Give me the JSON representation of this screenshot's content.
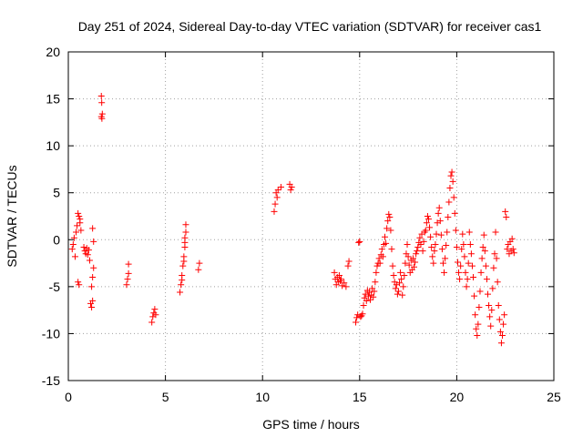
{
  "chart_data": {
    "type": "scatter",
    "title": "Day 251 of 2024, Sidereal Day-to-day VTEC variation (SDTVAR) for receiver cas1",
    "xlabel": "GPS time / hours",
    "ylabel": "SDTVAR / TECUs",
    "xlim": [
      0,
      25
    ],
    "ylim": [
      -15,
      20
    ],
    "xticks": [
      "0",
      "5",
      "10",
      "15",
      "20",
      "25"
    ],
    "yticks": [
      "-15",
      "-10",
      "-5",
      "0",
      "5",
      "10",
      "15",
      "20"
    ],
    "grid": true,
    "marker": "plus",
    "color": "#ff0000",
    "series": [
      {
        "name": "SDTVAR",
        "points": [
          [
            0.2,
            -1.0
          ],
          [
            0.25,
            -0.5
          ],
          [
            0.3,
            0.2
          ],
          [
            0.35,
            -1.8
          ],
          [
            0.4,
            0.8
          ],
          [
            0.45,
            1.5
          ],
          [
            0.5,
            2.8
          ],
          [
            0.55,
            2.5
          ],
          [
            0.6,
            2.2
          ],
          [
            0.65,
            1.0
          ],
          [
            0.5,
            -4.5
          ],
          [
            0.55,
            -4.8
          ],
          [
            0.6,
            1.8
          ],
          [
            0.8,
            -0.8
          ],
          [
            0.85,
            -1.2
          ],
          [
            0.9,
            -1.5
          ],
          [
            0.95,
            -0.9
          ],
          [
            1.0,
            -1.6
          ],
          [
            1.05,
            -1.1
          ],
          [
            1.1,
            -2.2
          ],
          [
            1.15,
            -6.8
          ],
          [
            1.2,
            -7.2
          ],
          [
            1.25,
            -6.5
          ],
          [
            1.2,
            -5.0
          ],
          [
            1.25,
            -4.0
          ],
          [
            1.25,
            1.2
          ],
          [
            1.3,
            -0.2
          ],
          [
            1.3,
            -3.0
          ],
          [
            1.7,
            15.3
          ],
          [
            1.72,
            14.6
          ],
          [
            1.75,
            13.4
          ],
          [
            1.73,
            12.9
          ],
          [
            1.7,
            13.1
          ],
          [
            3.0,
            -4.8
          ],
          [
            3.05,
            -4.2
          ],
          [
            3.1,
            -3.6
          ],
          [
            3.1,
            -2.6
          ],
          [
            4.3,
            -8.8
          ],
          [
            4.35,
            -8.2
          ],
          [
            4.4,
            -7.8
          ],
          [
            4.5,
            -8.0
          ],
          [
            4.45,
            -7.4
          ],
          [
            5.75,
            -5.6
          ],
          [
            5.8,
            -4.8
          ],
          [
            5.85,
            -3.8
          ],
          [
            5.9,
            -2.8
          ],
          [
            5.95,
            -1.8
          ],
          [
            6.0,
            -0.8
          ],
          [
            6.0,
            0.2
          ],
          [
            6.05,
            0.8
          ],
          [
            6.05,
            1.6
          ],
          [
            5.85,
            -4.3
          ],
          [
            5.95,
            -2.3
          ],
          [
            6.0,
            -0.3
          ],
          [
            6.7,
            -3.2
          ],
          [
            6.75,
            -2.5
          ],
          [
            10.6,
            3.0
          ],
          [
            10.65,
            3.8
          ],
          [
            10.7,
            5.0
          ],
          [
            10.75,
            4.5
          ],
          [
            10.8,
            5.3
          ],
          [
            10.95,
            5.6
          ],
          [
            11.4,
            5.9
          ],
          [
            11.45,
            5.3
          ],
          [
            11.5,
            5.6
          ],
          [
            13.7,
            -3.5
          ],
          [
            13.75,
            -4.2
          ],
          [
            13.8,
            -4.8
          ],
          [
            13.85,
            -4.0
          ],
          [
            13.9,
            -4.5
          ],
          [
            13.95,
            -3.8
          ],
          [
            14.0,
            -4.4
          ],
          [
            14.05,
            -4.2
          ],
          [
            14.1,
            -4.9
          ],
          [
            14.2,
            -4.6
          ],
          [
            14.3,
            -5.0
          ],
          [
            14.4,
            -2.8
          ],
          [
            14.45,
            -2.3
          ],
          [
            14.8,
            -8.8
          ],
          [
            14.85,
            -8.3
          ],
          [
            14.9,
            -8.0
          ],
          [
            14.95,
            -0.3
          ],
          [
            15.0,
            -0.2
          ],
          [
            15.05,
            -8.2
          ],
          [
            15.1,
            -8.1
          ],
          [
            15.15,
            -7.9
          ],
          [
            15.2,
            -7.0
          ],
          [
            15.25,
            -6.2
          ],
          [
            15.3,
            -5.8
          ],
          [
            15.35,
            -6.5
          ],
          [
            15.4,
            -5.4
          ],
          [
            15.45,
            -6.0
          ],
          [
            15.5,
            -5.6
          ],
          [
            15.55,
            -6.4
          ],
          [
            15.6,
            -5.9
          ],
          [
            15.65,
            -5.2
          ],
          [
            15.7,
            -6.1
          ],
          [
            15.75,
            -5.5
          ],
          [
            15.8,
            -4.5
          ],
          [
            15.85,
            -3.5
          ],
          [
            15.9,
            -2.8
          ],
          [
            15.95,
            -2.5
          ],
          [
            16.0,
            -2.0
          ],
          [
            16.05,
            -2.5
          ],
          [
            16.1,
            -1.6
          ],
          [
            16.15,
            -1.0
          ],
          [
            16.2,
            -1.8
          ],
          [
            16.25,
            -0.5
          ],
          [
            16.3,
            0.3
          ],
          [
            16.35,
            -0.4
          ],
          [
            16.4,
            1.2
          ],
          [
            16.45,
            2.0
          ],
          [
            16.5,
            2.7
          ],
          [
            16.55,
            2.4
          ],
          [
            16.6,
            1.0
          ],
          [
            16.65,
            -1.0
          ],
          [
            16.7,
            -2.8
          ],
          [
            16.75,
            -3.8
          ],
          [
            16.8,
            -4.5
          ],
          [
            16.85,
            -5.2
          ],
          [
            16.9,
            -4.8
          ],
          [
            16.95,
            -5.8
          ],
          [
            17.0,
            -5.5
          ],
          [
            17.05,
            -4.6
          ],
          [
            17.1,
            -3.5
          ],
          [
            17.15,
            -4.2
          ],
          [
            17.2,
            -5.9
          ],
          [
            17.25,
            -5.0
          ],
          [
            17.3,
            -3.8
          ],
          [
            17.35,
            -2.5
          ],
          [
            17.4,
            -1.5
          ],
          [
            17.45,
            -0.5
          ],
          [
            17.5,
            -1.8
          ],
          [
            17.55,
            -2.7
          ],
          [
            17.6,
            -3.5
          ],
          [
            17.65,
            -2.2
          ],
          [
            17.7,
            -3.2
          ],
          [
            17.75,
            -2.0
          ],
          [
            17.8,
            -2.9
          ],
          [
            17.85,
            -2.4
          ],
          [
            17.9,
            -1.5
          ],
          [
            17.95,
            -1.2
          ],
          [
            18.0,
            -0.8
          ],
          [
            18.05,
            -0.3
          ],
          [
            18.1,
            0.2
          ],
          [
            18.15,
            -0.5
          ],
          [
            18.2,
            0.6
          ],
          [
            18.25,
            -1.2
          ],
          [
            18.3,
            -0.2
          ],
          [
            18.35,
            0.8
          ],
          [
            18.4,
            1.0
          ],
          [
            18.45,
            1.8
          ],
          [
            18.5,
            2.5
          ],
          [
            18.55,
            2.2
          ],
          [
            18.6,
            1.3
          ],
          [
            18.65,
            0.3
          ],
          [
            18.7,
            -0.8
          ],
          [
            18.75,
            -1.8
          ],
          [
            18.8,
            -2.5
          ],
          [
            18.85,
            -1.2
          ],
          [
            18.9,
            -0.5
          ],
          [
            18.95,
            0.6
          ],
          [
            19.0,
            1.8
          ],
          [
            19.05,
            2.8
          ],
          [
            19.1,
            3.4
          ],
          [
            19.15,
            2.0
          ],
          [
            19.2,
            0.5
          ],
          [
            19.25,
            -1.0
          ],
          [
            19.3,
            -2.5
          ],
          [
            19.35,
            -3.5
          ],
          [
            19.4,
            -2.0
          ],
          [
            19.45,
            -0.6
          ],
          [
            19.5,
            0.8
          ],
          [
            19.55,
            2.4
          ],
          [
            19.6,
            4.0
          ],
          [
            19.65,
            5.5
          ],
          [
            19.7,
            6.8
          ],
          [
            19.75,
            7.2
          ],
          [
            19.8,
            6.2
          ],
          [
            19.85,
            4.5
          ],
          [
            19.9,
            2.8
          ],
          [
            19.95,
            1.0
          ],
          [
            20.0,
            -0.8
          ],
          [
            20.05,
            -2.4
          ],
          [
            20.1,
            -3.5
          ],
          [
            20.15,
            -4.2
          ],
          [
            20.2,
            -2.8
          ],
          [
            20.25,
            -1.0
          ],
          [
            20.3,
            0.6
          ],
          [
            20.35,
            -0.5
          ],
          [
            20.4,
            -1.8
          ],
          [
            20.45,
            -3.5
          ],
          [
            20.5,
            -5.0
          ],
          [
            20.55,
            -4.2
          ],
          [
            20.6,
            -2.5
          ],
          [
            20.65,
            0.8
          ],
          [
            20.7,
            -0.5
          ],
          [
            20.75,
            -1.5
          ],
          [
            20.8,
            -2.8
          ],
          [
            20.85,
            -4.0
          ],
          [
            20.9,
            -6.0
          ],
          [
            20.95,
            -8.0
          ],
          [
            21.0,
            -9.5
          ],
          [
            21.05,
            -10.2
          ],
          [
            21.1,
            -9.0
          ],
          [
            21.15,
            -7.2
          ],
          [
            21.2,
            -5.5
          ],
          [
            21.25,
            -3.5
          ],
          [
            21.3,
            -2.0
          ],
          [
            21.35,
            -0.8
          ],
          [
            21.4,
            0.5
          ],
          [
            21.45,
            -1.2
          ],
          [
            21.5,
            -2.8
          ],
          [
            21.55,
            -4.2
          ],
          [
            21.6,
            -5.8
          ],
          [
            21.65,
            -7.0
          ],
          [
            21.7,
            -8.2
          ],
          [
            21.75,
            -9.2
          ],
          [
            21.8,
            -7.5
          ],
          [
            21.85,
            -5.2
          ],
          [
            21.9,
            -3.0
          ],
          [
            21.95,
            -1.5
          ],
          [
            22.0,
            0.8
          ],
          [
            22.05,
            -2.0
          ],
          [
            22.1,
            -4.5
          ],
          [
            22.15,
            -7.0
          ],
          [
            22.2,
            -8.5
          ],
          [
            22.25,
            -9.8
          ],
          [
            22.3,
            -11.0
          ],
          [
            22.35,
            -10.2
          ],
          [
            22.4,
            -9.0
          ],
          [
            22.45,
            -8.0
          ],
          [
            22.5,
            3.0
          ],
          [
            22.55,
            2.4
          ],
          [
            22.6,
            -1.0
          ],
          [
            22.65,
            -0.5
          ],
          [
            22.7,
            -1.5
          ],
          [
            22.75,
            -0.2
          ],
          [
            22.8,
            -1.2
          ],
          [
            22.85,
            0.1
          ],
          [
            22.9,
            -1.0
          ],
          [
            22.95,
            -1.4
          ]
        ]
      }
    ]
  }
}
